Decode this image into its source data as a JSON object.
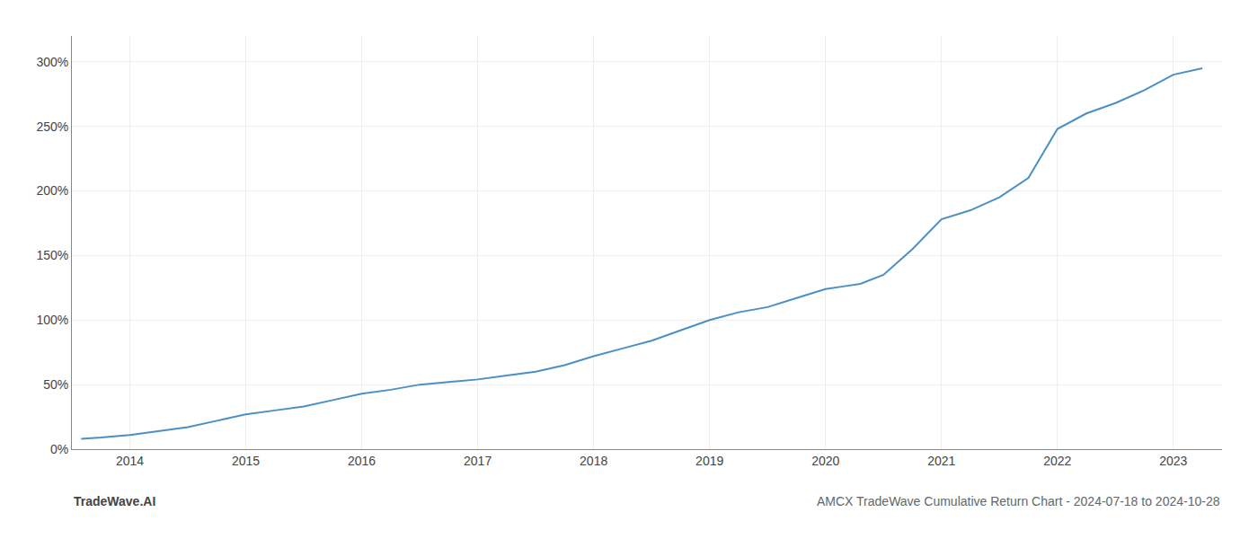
{
  "chart_data": {
    "type": "line",
    "title": "AMCX TradeWave Cumulative Return Chart - 2024-07-18 to 2024-10-28",
    "annotations": [
      "TradeWave.AI"
    ],
    "x": [
      2013.58,
      2013.75,
      2014.0,
      2014.25,
      2014.5,
      2014.75,
      2015.0,
      2015.25,
      2015.5,
      2015.75,
      2016.0,
      2016.25,
      2016.5,
      2016.75,
      2017.0,
      2017.25,
      2017.5,
      2017.75,
      2018.0,
      2018.25,
      2018.5,
      2018.75,
      2019.0,
      2019.25,
      2019.5,
      2019.75,
      2020.0,
      2020.15,
      2020.3,
      2020.5,
      2020.75,
      2021.0,
      2021.25,
      2021.5,
      2021.75,
      2022.0,
      2022.25,
      2022.5,
      2022.75,
      2023.0,
      2023.25
    ],
    "values": [
      8,
      9,
      11,
      14,
      17,
      22,
      27,
      30,
      33,
      38,
      43,
      46,
      50,
      52,
      54,
      57,
      60,
      65,
      72,
      78,
      84,
      92,
      100,
      106,
      110,
      117,
      124,
      126,
      128,
      135,
      155,
      178,
      185,
      195,
      210,
      248,
      260,
      268,
      278,
      290,
      295
    ],
    "color": "#4a90c4",
    "xlim": [
      2013.5,
      2023.42
    ],
    "ylim": [
      0,
      320
    ],
    "xticks": [
      2014,
      2015,
      2016,
      2017,
      2018,
      2019,
      2020,
      2021,
      2022,
      2023
    ],
    "yticks": [
      {
        "value": 0,
        "label": "0%"
      },
      {
        "value": 50,
        "label": "50%"
      },
      {
        "value": 100,
        "label": "100%"
      },
      {
        "value": 150,
        "label": "150%"
      },
      {
        "value": 200,
        "label": "200%"
      },
      {
        "value": 250,
        "label": "250%"
      },
      {
        "value": 300,
        "label": "300%"
      }
    ],
    "grid": true
  }
}
